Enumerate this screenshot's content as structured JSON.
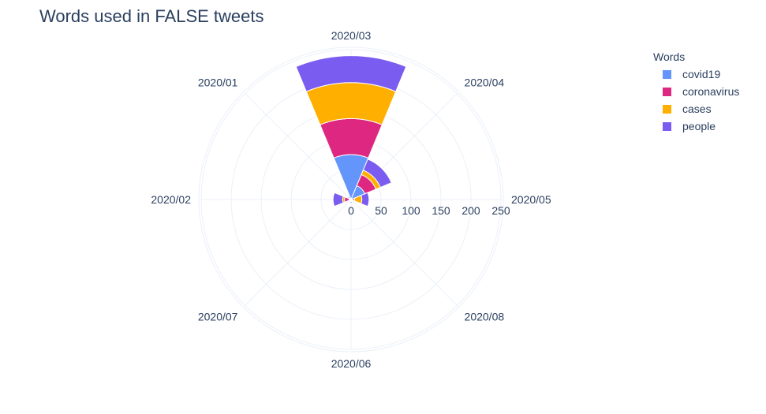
{
  "chart_data": {
    "type": "barpolar",
    "title": "Words used in FALSE tweets",
    "radial_axis": {
      "range": [
        0,
        250
      ],
      "ticks": [
        "0",
        "50",
        "100",
        "150",
        "200",
        "250"
      ]
    },
    "angular_axis": {
      "direction": "clockwise",
      "categories": [
        "2020/03",
        "2020/04",
        "2020/05",
        "2020/08",
        "2020/06",
        "2020/07",
        "2020/02",
        "2020/01"
      ]
    },
    "legend": {
      "title": "Words",
      "placement": "right"
    },
    "series": [
      {
        "name": "covid19",
        "color": "#636EFA",
        "values": [
          75,
          25,
          3,
          1,
          2,
          1,
          3,
          1
        ]
      },
      {
        "name": "coronavirus",
        "color": "#DE2C82",
        "values": [
          60,
          20,
          3,
          1,
          1,
          1,
          8,
          2
        ]
      },
      {
        "name": "cases",
        "color": "#FFAF00",
        "values": [
          60,
          8,
          12,
          1,
          1,
          1,
          3,
          1
        ]
      },
      {
        "name": "people",
        "color": "#7B5CF0",
        "values": [
          45,
          20,
          12,
          1,
          2,
          1,
          16,
          2
        ]
      }
    ],
    "bar_colors_rendered": {
      "covid19": "#6495FA",
      "coronavirus": "#DE2780",
      "cases": "#FFAF00",
      "people": "#7B5CF0"
    },
    "grid": true
  }
}
